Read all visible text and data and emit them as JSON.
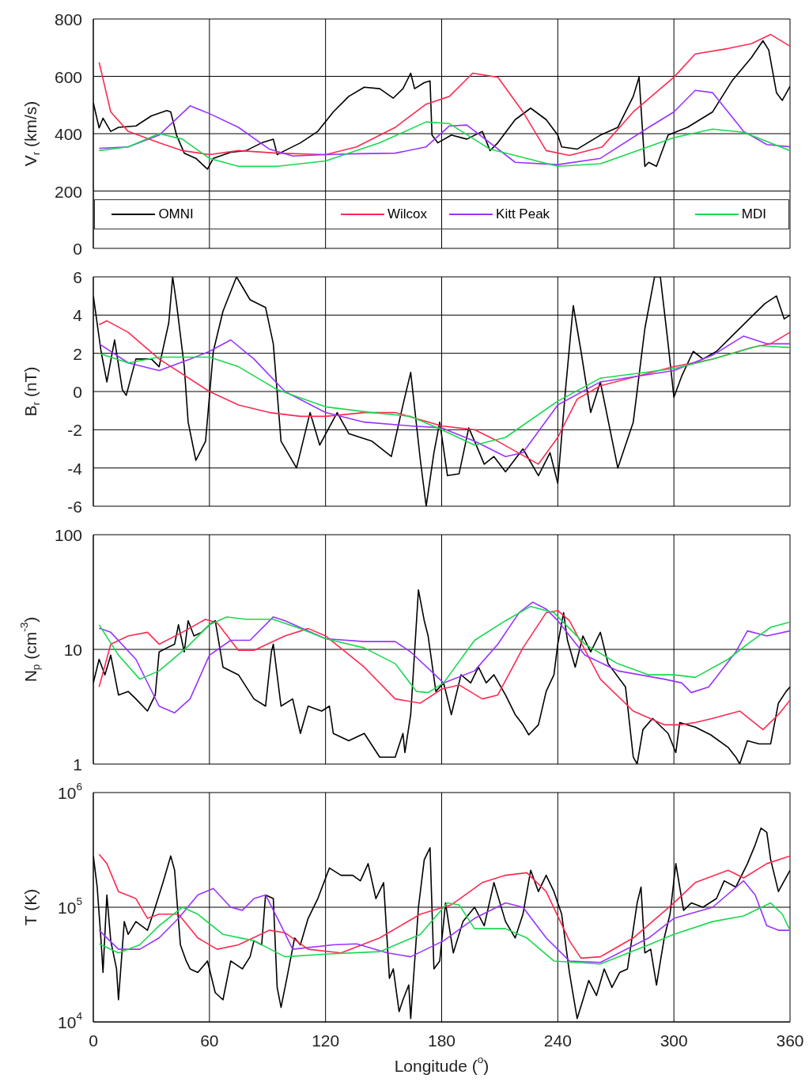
{
  "chart_data": [
    {
      "type": "line",
      "ylabel": "V$_{r}$ (km/s)",
      "xlim": [
        0,
        360
      ],
      "xticks": [
        0,
        60,
        120,
        180,
        240,
        300,
        360
      ],
      "ylim": [
        0,
        800
      ],
      "yticks": [
        0,
        200,
        400,
        600,
        800
      ],
      "grid": true,
      "tick_labels": "y",
      "legend": "bottom",
      "series": [
        {
          "name": "OMNI",
          "color": "#000000",
          "x": [
            0,
            3,
            5,
            9,
            13,
            22,
            30,
            38,
            40,
            43,
            47,
            53,
            59,
            62,
            71,
            79,
            87,
            93,
            95,
            99,
            107,
            116,
            124,
            132,
            140,
            148,
            155,
            160,
            164,
            166,
            171,
            174,
            175,
            178,
            185,
            193,
            201,
            205,
            209,
            218,
            226,
            234,
            240,
            242,
            250,
            262,
            271,
            279,
            282,
            285,
            287,
            291,
            297,
            307,
            320,
            330,
            340,
            346,
            349,
            353,
            356,
            360
          ],
          "values": [
            508,
            420,
            454,
            408,
            422,
            427,
            462,
            481,
            476,
            395,
            332,
            314,
            276,
            314,
            335,
            341,
            368,
            381,
            327,
            341,
            368,
            408,
            476,
            530,
            562,
            557,
            524,
            557,
            611,
            557,
            578,
            584,
            395,
            368,
            395,
            381,
            408,
            341,
            368,
            449,
            489,
            449,
            395,
            354,
            346,
            395,
            422,
            530,
            597,
            286,
            300,
            286,
            395,
            422,
            476,
            584,
            665,
            724,
            692,
            543,
            516,
            565
          ]
        },
        {
          "name": "Wilcox",
          "color": "#ff2a50",
          "x": [
            3,
            9,
            18,
            34,
            46,
            60,
            75,
            95,
            120,
            136,
            156,
            172,
            184,
            196,
            209,
            222,
            234,
            246,
            263,
            279,
            300,
            311,
            328,
            340,
            350,
            360
          ],
          "values": [
            649,
            476,
            408,
            368,
            341,
            327,
            341,
            332,
            327,
            354,
            422,
            503,
            530,
            611,
            597,
            476,
            341,
            324,
            354,
            476,
            597,
            678,
            697,
            714,
            746,
            705
          ]
        },
        {
          "name": "Kitt Peak",
          "color": "#9933ff",
          "x": [
            3,
            18,
            34,
            50,
            60,
            75,
            91,
            103,
            120,
            136,
            156,
            172,
            184,
            193,
            205,
            218,
            240,
            262,
            287,
            300,
            311,
            320,
            336,
            348,
            360
          ],
          "values": [
            349,
            354,
            395,
            497,
            470,
            422,
            346,
            322,
            327,
            330,
            332,
            354,
            427,
            430,
            368,
            300,
            292,
            314,
            422,
            476,
            551,
            543,
            408,
            362,
            354
          ]
        },
        {
          "name": "MDI",
          "color": "#19d94f",
          "x": [
            3,
            18,
            34,
            46,
            60,
            75,
            95,
            120,
            148,
            172,
            184,
            205,
            240,
            262,
            300,
            320,
            336,
            360
          ],
          "values": [
            341,
            354,
            400,
            381,
            314,
            286,
            286,
            305,
            368,
            441,
            435,
            346,
            286,
            295,
            386,
            416,
            405,
            341
          ]
        }
      ]
    },
    {
      "type": "line",
      "ylabel": "B$_{r}$ (nT)",
      "xlim": [
        0,
        360
      ],
      "xticks": [
        0,
        60,
        120,
        180,
        240,
        300,
        360
      ],
      "ylim": [
        -6,
        6
      ],
      "yticks": [
        -6,
        -4,
        -2,
        0,
        2,
        4,
        6
      ],
      "grid": true,
      "tick_labels": "y",
      "series": [
        {
          "color": "#000000",
          "x": [
            0,
            4,
            7,
            11,
            15,
            17,
            22,
            30,
            34,
            39,
            41,
            43,
            47,
            49,
            53,
            58,
            62,
            67,
            74,
            81,
            89,
            93,
            97,
            105,
            112,
            117,
            126,
            132,
            144,
            154,
            160,
            164,
            169,
            172,
            176,
            179,
            183,
            189,
            194,
            197,
            202,
            207,
            213,
            222,
            230,
            236,
            240,
            244,
            248,
            252,
            257,
            262,
            271,
            279,
            285,
            290,
            293,
            297,
            300,
            304,
            310,
            315,
            322,
            330,
            339,
            347,
            353,
            357,
            360
          ],
          "values": [
            5.0,
            2.1,
            0.5,
            2.7,
            0.1,
            -0.2,
            1.7,
            1.7,
            1.3,
            3.6,
            6.0,
            4.6,
            1.3,
            -1.6,
            -3.6,
            -2.6,
            2.1,
            4.2,
            6.0,
            4.8,
            4.4,
            2.5,
            -2.6,
            -4.0,
            -1.1,
            -2.8,
            -1.1,
            -2.2,
            -2.6,
            -3.4,
            -0.7,
            1.0,
            -3.6,
            -6.0,
            -3.2,
            -1.6,
            -4.4,
            -4.3,
            -1.9,
            -2.6,
            -3.8,
            -3.4,
            -4.2,
            -3.0,
            -4.4,
            -3.2,
            -4.8,
            0.1,
            4.5,
            2.1,
            -1.1,
            0.5,
            -4.0,
            -1.6,
            3.3,
            6.0,
            6.0,
            2.5,
            -0.3,
            0.8,
            2.1,
            1.7,
            2.1,
            2.9,
            3.8,
            4.6,
            5.0,
            3.8,
            4.0
          ]
        },
        {
          "color": "#ff2a50",
          "x": [
            3,
            7,
            18,
            34,
            60,
            75,
            91,
            107,
            120,
            140,
            156,
            180,
            197,
            209,
            230,
            240,
            250,
            262,
            300,
            320,
            340,
            350,
            360
          ],
          "values": [
            3.5,
            3.7,
            3.1,
            1.7,
            0.0,
            -0.7,
            -1.1,
            -1.3,
            -1.3,
            -1.1,
            -1.1,
            -1.8,
            -2.0,
            -2.6,
            -3.8,
            -2.4,
            -0.4,
            0.3,
            1.3,
            1.7,
            2.3,
            2.5,
            3.1
          ]
        },
        {
          "color": "#9933ff",
          "x": [
            3,
            18,
            34,
            50,
            60,
            71,
            83,
            99,
            120,
            140,
            164,
            180,
            197,
            213,
            222,
            240,
            262,
            300,
            320,
            336,
            348,
            360
          ],
          "values": [
            2.5,
            1.5,
            1.1,
            1.7,
            2.1,
            2.7,
            1.7,
            0.0,
            -1.1,
            -1.6,
            -1.8,
            -1.9,
            -2.6,
            -3.4,
            -3.2,
            -0.7,
            0.5,
            1.1,
            1.9,
            2.9,
            2.5,
            2.5
          ]
        },
        {
          "color": "#19d94f",
          "x": [
            3,
            18,
            34,
            60,
            75,
            95,
            120,
            144,
            164,
            180,
            197,
            213,
            240,
            262,
            300,
            320,
            344,
            360
          ],
          "values": [
            2.0,
            1.5,
            1.8,
            1.8,
            1.3,
            0.1,
            -0.8,
            -1.1,
            -1.3,
            -2.0,
            -2.8,
            -2.4,
            -0.5,
            0.7,
            1.2,
            1.7,
            2.4,
            2.3
          ]
        }
      ]
    },
    {
      "type": "line",
      "ylabel": "N$_{p}$ (cm$^{-3}$)",
      "xlim": [
        0,
        360
      ],
      "xticks": [
        0,
        60,
        120,
        180,
        240,
        300,
        360
      ],
      "ylim": [
        1,
        100
      ],
      "yticks": [
        1,
        10,
        100
      ],
      "log": true,
      "grid": true,
      "tick_labels": "y",
      "series": [
        {
          "color": "#000000",
          "x": [
            0,
            3,
            6,
            9,
            13,
            18,
            22,
            28,
            32,
            34,
            38,
            42,
            44,
            47,
            49,
            52,
            56,
            60,
            63,
            67,
            75,
            83,
            89,
            92,
            93,
            97,
            103,
            107,
            111,
            118,
            122,
            124,
            132,
            140,
            148,
            156,
            160,
            161,
            164,
            168,
            171,
            173,
            177,
            181,
            185,
            190,
            195,
            199,
            203,
            207,
            213,
            218,
            222,
            225,
            230,
            234,
            238,
            240,
            243,
            245,
            249,
            253,
            257,
            262,
            266,
            275,
            279,
            281,
            284,
            289,
            297,
            301,
            303,
            311,
            319,
            328,
            332,
            334,
            338,
            344,
            350,
            354,
            358,
            360
          ],
          "values": [
            5.1,
            8.2,
            6.0,
            8.9,
            4.0,
            4.3,
            3.7,
            2.9,
            4.0,
            9.5,
            10.3,
            11.1,
            16.4,
            9.5,
            17.8,
            13.1,
            14.1,
            16.4,
            17.8,
            7.0,
            6.0,
            3.7,
            3.2,
            9.5,
            11.1,
            3.2,
            3.7,
            1.85,
            3.2,
            2.9,
            3.2,
            1.85,
            1.6,
            1.85,
            1.15,
            1.15,
            1.85,
            1.26,
            2.7,
            33,
            17.8,
            13.1,
            4.3,
            5.1,
            2.7,
            6.0,
            5.1,
            7.0,
            5.1,
            6.0,
            4.0,
            2.7,
            2.2,
            1.8,
            2.2,
            4.3,
            6.0,
            11.1,
            20.9,
            12.0,
            7.0,
            13.1,
            9.5,
            14.1,
            7.5,
            4.7,
            1.15,
            1.0,
            2.0,
            2.5,
            1.85,
            1.26,
            2.3,
            2.1,
            1.8,
            1.4,
            1.15,
            1.0,
            1.6,
            1.5,
            1.5,
            3.4,
            4.3,
            4.7
          ]
        },
        {
          "color": "#ff2a50",
          "x": [
            3,
            9,
            18,
            28,
            34,
            46,
            58,
            64,
            75,
            83,
            99,
            111,
            120,
            140,
            156,
            169,
            180,
            189,
            201,
            209,
            222,
            234,
            240,
            246,
            262,
            279,
            295,
            303,
            311,
            320,
            334,
            346,
            354,
            360
          ],
          "values": [
            4.7,
            11.1,
            13.1,
            14.1,
            11.1,
            14.1,
            18.3,
            17.0,
            9.8,
            9.8,
            13.1,
            15.2,
            13.1,
            7.0,
            3.7,
            3.4,
            4.5,
            4.9,
            3.7,
            4.0,
            10.3,
            20.9,
            21.8,
            17.8,
            5.5,
            2.9,
            2.2,
            2.2,
            2.3,
            2.5,
            2.9,
            2.0,
            2.7,
            3.6
          ]
        },
        {
          "color": "#9933ff",
          "x": [
            3,
            9,
            22,
            34,
            42,
            50,
            60,
            71,
            81,
            93,
            99,
            120,
            140,
            156,
            164,
            181,
            197,
            209,
            220,
            227,
            234,
            240,
            254,
            271,
            295,
            304,
            309,
            318,
            332,
            338,
            348,
            360
          ],
          "values": [
            15.3,
            14.1,
            8.2,
            3.2,
            2.8,
            3.7,
            8.9,
            12.0,
            12.0,
            19.2,
            17.8,
            12.4,
            11.7,
            11.7,
            9.5,
            5.1,
            6.5,
            11.1,
            20.9,
            25.8,
            22.5,
            17.8,
            8.9,
            6.5,
            5.5,
            5.1,
            4.2,
            4.7,
            9.5,
            14.5,
            13.1,
            14.5
          ]
        },
        {
          "color": "#19d94f",
          "x": [
            3,
            13,
            24,
            34,
            48,
            60,
            69,
            79,
            93,
            107,
            120,
            140,
            156,
            167,
            173,
            181,
            197,
            213,
            226,
            238,
            254,
            271,
            287,
            300,
            311,
            328,
            338,
            350,
            360
          ],
          "values": [
            16.4,
            8.9,
            5.5,
            6.5,
            10.3,
            16.4,
            19.2,
            18.3,
            18.3,
            15.2,
            12.4,
            10.3,
            7.5,
            4.3,
            4.2,
            5.1,
            12.0,
            17.8,
            23.7,
            20.9,
            11.1,
            7.5,
            6.0,
            6.0,
            5.7,
            8.2,
            11.1,
            15.6,
            17.3
          ]
        }
      ]
    },
    {
      "type": "line",
      "ylabel": "T (K)",
      "xlabel": "Longitude ($^{o}$)",
      "xlim": [
        0,
        360
      ],
      "xticks": [
        0,
        60,
        120,
        180,
        240,
        300,
        360
      ],
      "ylim": [
        10000,
        1000000
      ],
      "yticks": [
        {
          "value": 10000,
          "label": "10$^{4}$"
        },
        {
          "value": 100000,
          "label": "10$^{5}$"
        },
        {
          "value": 1000000,
          "label": "10$^{6}$"
        }
      ],
      "log": true,
      "grid": true,
      "series": [
        {
          "color": "#000000",
          "x": [
            0,
            2,
            4,
            5,
            7,
            9,
            12,
            13,
            16,
            18,
            22,
            28,
            32,
            36,
            40,
            42,
            45,
            48,
            50,
            54,
            59,
            63,
            67,
            71,
            77,
            81,
            83,
            87,
            89,
            93,
            95,
            97,
            100,
            104,
            107,
            111,
            116,
            122,
            128,
            134,
            138,
            142,
            146,
            150,
            153,
            155,
            158,
            160,
            163,
            164,
            168,
            171,
            174,
            176,
            179,
            182,
            186,
            191,
            197,
            202,
            207,
            213,
            218,
            222,
            226,
            230,
            234,
            238,
            242,
            246,
            250,
            253,
            256,
            260,
            264,
            268,
            272,
            276,
            281,
            283,
            285,
            288,
            291,
            295,
            298,
            301,
            305,
            309,
            315,
            322,
            326,
            332,
            338,
            342,
            345,
            348,
            350,
            354,
            357,
            360
          ],
          "values": [
            280000,
            150000,
            51000,
            27000,
            128000,
            51000,
            29000,
            15600,
            75000,
            58000,
            75000,
            63000,
            100000,
            164000,
            280000,
            210000,
            47000,
            34000,
            29000,
            27000,
            34000,
            18000,
            15600,
            34000,
            29000,
            37000,
            51000,
            47000,
            128000,
            119000,
            20000,
            13400,
            24000,
            54000,
            47000,
            80000,
            119000,
            220000,
            190000,
            190000,
            170000,
            240000,
            119000,
            164000,
            24000,
            29000,
            12300,
            15600,
            21000,
            10700,
            100000,
            260000,
            330000,
            29000,
            34000,
            109000,
            40000,
            75000,
            100000,
            69000,
            164000,
            75000,
            54000,
            87000,
            210000,
            137000,
            190000,
            137000,
            87000,
            27000,
            10700,
            15600,
            23000,
            17000,
            29000,
            20000,
            27000,
            29000,
            109000,
            150000,
            40000,
            43000,
            21000,
            54000,
            87000,
            240000,
            94000,
            109000,
            100000,
            119000,
            170000,
            150000,
            240000,
            350000,
            490000,
            450000,
            260000,
            137000,
            170000,
            210000
          ]
        },
        {
          "color": "#ff2a50",
          "x": [
            3,
            7,
            13,
            22,
            28,
            34,
            44,
            54,
            64,
            75,
            91,
            99,
            111,
            128,
            148,
            169,
            185,
            201,
            213,
            224,
            234,
            246,
            252,
            262,
            279,
            300,
            311,
            328,
            336,
            348,
            360
          ],
          "values": [
            290000,
            240000,
            137000,
            119000,
            80000,
            87000,
            87000,
            54000,
            43000,
            47000,
            63000,
            60000,
            43000,
            40000,
            54000,
            87000,
            105000,
            164000,
            190000,
            200000,
            137000,
            51000,
            36000,
            37000,
            54000,
            109000,
            164000,
            210000,
            180000,
            240000,
            280000
          ]
        },
        {
          "color": "#9933ff",
          "x": [
            3,
            13,
            24,
            34,
            44,
            54,
            62,
            71,
            77,
            83,
            89,
            96,
            103,
            124,
            136,
            152,
            164,
            181,
            197,
            213,
            222,
            234,
            246,
            262,
            287,
            300,
            320,
            336,
            342,
            348,
            354,
            360
          ],
          "values": [
            63000,
            43000,
            43000,
            54000,
            80000,
            128000,
            146000,
            100000,
            94000,
            119000,
            128000,
            75000,
            43000,
            47000,
            48000,
            40000,
            37000,
            51000,
            80000,
            109000,
            100000,
            54000,
            34000,
            33000,
            54000,
            80000,
            100000,
            170000,
            128000,
            69000,
            63000,
            63000
          ]
        },
        {
          "color": "#19d94f",
          "x": [
            3,
            13,
            24,
            34,
            46,
            54,
            67,
            83,
            99,
            120,
            148,
            169,
            183,
            189,
            197,
            213,
            224,
            238,
            262,
            287,
            300,
            320,
            336,
            350,
            356,
            360
          ],
          "values": [
            48000,
            40000,
            47000,
            69000,
            100000,
            87000,
            58000,
            51000,
            37000,
            39000,
            41000,
            58000,
            109000,
            105000,
            65000,
            65000,
            54000,
            34000,
            32000,
            47000,
            58000,
            75000,
            84000,
            109000,
            87000,
            63000
          ]
        }
      ]
    }
  ]
}
